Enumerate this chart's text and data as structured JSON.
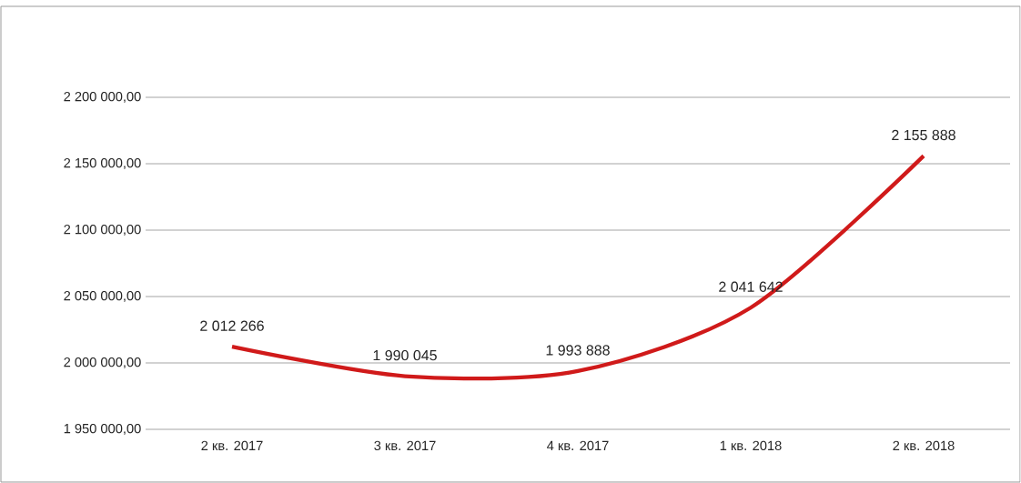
{
  "chart_data": {
    "type": "line",
    "categories": [
      "2 кв. 2017",
      "3 кв. 2017",
      "4 кв. 2017",
      "1 кв. 2018",
      "2 кв. 2018"
    ],
    "series": [
      {
        "color": "#d01a1a",
        "values": [
          2012266,
          1990045,
          1993888,
          2041642,
          2155888
        ],
        "value_labels": [
          "2 012 266",
          "1 990 045",
          "1 993 888",
          "2 041 642",
          "2 155 888"
        ]
      }
    ],
    "ylim": [
      1950000,
      2200000
    ],
    "yticks": [
      {
        "value": 1950000,
        "label": "1 950 000,00"
      },
      {
        "value": 2000000,
        "label": "2 000 000,00"
      },
      {
        "value": 2050000,
        "label": "2 050 000,00"
      },
      {
        "value": 2100000,
        "label": "2 100 000,00"
      },
      {
        "value": 2150000,
        "label": "2 150 000,00"
      },
      {
        "value": 2200000,
        "label": "2 200 000,00"
      }
    ],
    "grid": "y",
    "marker": "none",
    "line_style": "solid"
  }
}
